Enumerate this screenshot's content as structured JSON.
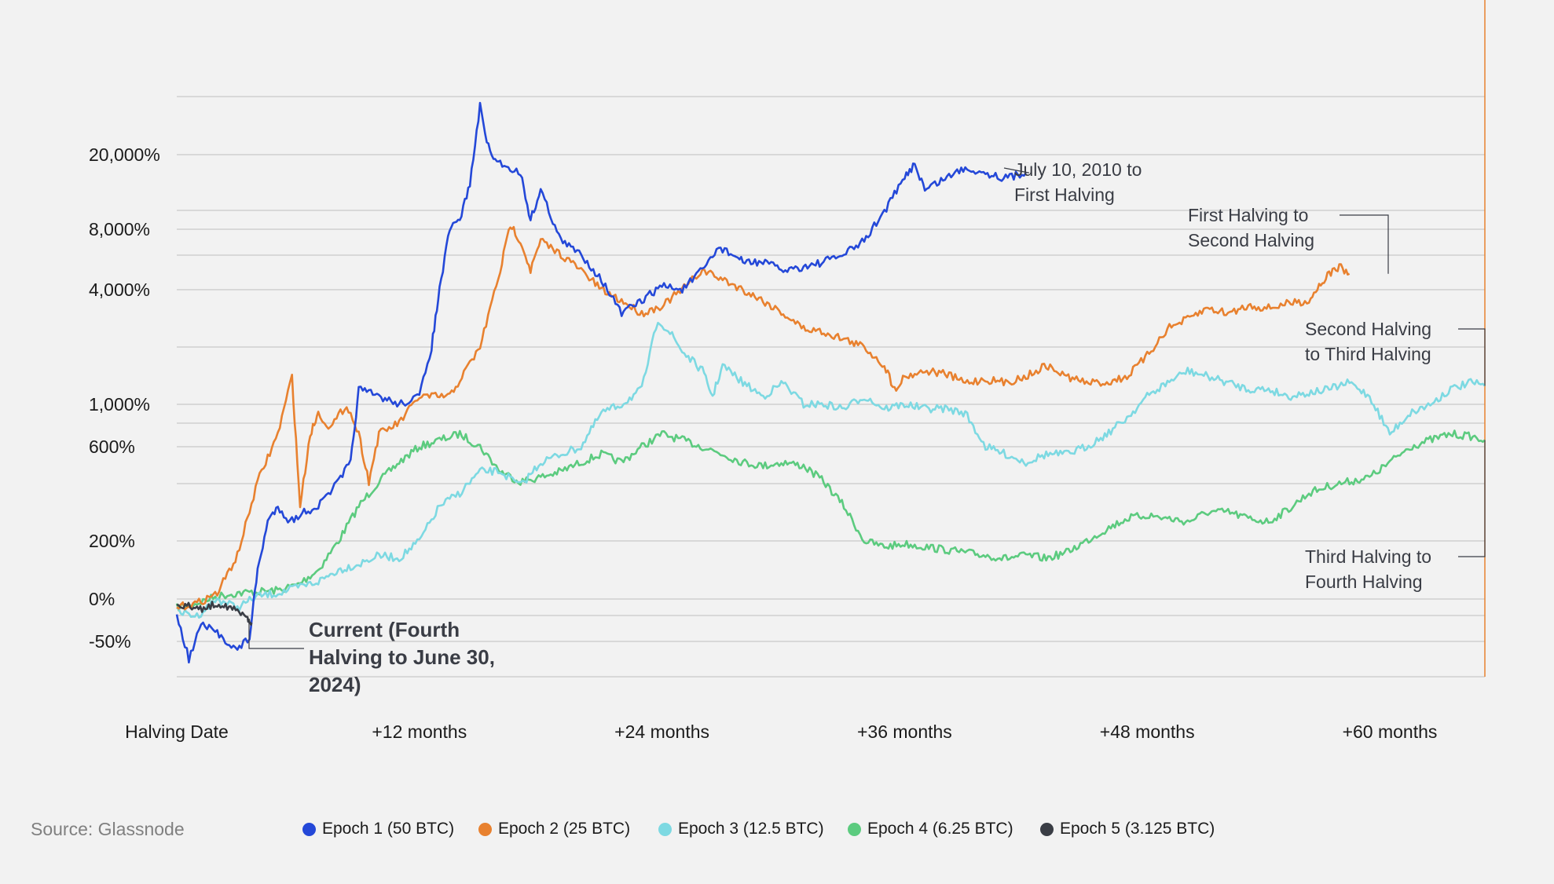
{
  "source": "Source: Glassnode",
  "chart_data": {
    "type": "line",
    "title": "",
    "xlabel": "",
    "ylabel": "",
    "y_scale": "log-like (return %)",
    "grid": "horizontal",
    "legend_position": "bottom",
    "x_ticks": [
      {
        "month": 0,
        "label": "Halving Date"
      },
      {
        "month": 12,
        "label": "+12 months"
      },
      {
        "month": 24,
        "label": "+24 months"
      },
      {
        "month": 36,
        "label": "+36 months"
      },
      {
        "month": 48,
        "label": "+48 months"
      },
      {
        "month": 60,
        "label": "+60 months"
      }
    ],
    "y_ticks": [
      {
        "value": 20000,
        "label": "20,000%"
      },
      {
        "value": 8000,
        "label": "8,000%"
      },
      {
        "value": 4000,
        "label": "4,000%"
      },
      {
        "value": 1000,
        "label": "1,000%"
      },
      {
        "value": 600,
        "label": "600%"
      },
      {
        "value": 200,
        "label": "200%"
      },
      {
        "value": 0,
        "label": "0%"
      },
      {
        "value": -50,
        "label": "-50%"
      }
    ],
    "y_range": [
      -90,
      60000
    ],
    "x_range_months": [
      0,
      64.7
    ],
    "series": [
      {
        "name": "Epoch 1 (50 BTC)",
        "color": "#2448d8",
        "points": [
          [
            0,
            -20
          ],
          [
            0.6,
            -70
          ],
          [
            1.2,
            -30
          ],
          [
            2,
            -40
          ],
          [
            3,
            -60
          ],
          [
            3.6,
            -45
          ],
          [
            4,
            100
          ],
          [
            4.5,
            250
          ],
          [
            5,
            300
          ],
          [
            5.6,
            250
          ],
          [
            6.3,
            280
          ],
          [
            7,
            300
          ],
          [
            8,
            400
          ],
          [
            8.6,
            500
          ],
          [
            9,
            1200
          ],
          [
            10,
            1100
          ],
          [
            11,
            1000
          ],
          [
            12,
            1100
          ],
          [
            12.6,
            2000
          ],
          [
            13,
            4000
          ],
          [
            13.5,
            8000
          ],
          [
            14,
            9000
          ],
          [
            14.5,
            14000
          ],
          [
            15,
            40000
          ],
          [
            15.5,
            20000
          ],
          [
            16,
            18000
          ],
          [
            17,
            16000
          ],
          [
            17.5,
            9000
          ],
          [
            18,
            13000
          ],
          [
            19,
            7000
          ],
          [
            20,
            6000
          ],
          [
            21,
            4500
          ],
          [
            22,
            3000
          ],
          [
            23,
            3500
          ],
          [
            24,
            4200
          ],
          [
            25,
            4000
          ],
          [
            26,
            5000
          ],
          [
            26.8,
            6500
          ],
          [
            27.5,
            6000
          ],
          [
            28,
            5500
          ],
          [
            29,
            5500
          ],
          [
            30,
            5000
          ],
          [
            31,
            5200
          ],
          [
            32,
            5500
          ],
          [
            33,
            6000
          ],
          [
            34,
            7000
          ],
          [
            35,
            10000
          ],
          [
            36,
            15000
          ],
          [
            36.5,
            18000
          ],
          [
            37,
            13000
          ],
          [
            38,
            15000
          ],
          [
            39,
            17000
          ],
          [
            40,
            16000
          ],
          [
            41,
            15000
          ],
          [
            42,
            16000
          ]
        ]
      },
      {
        "name": "Epoch 2 (25 BTC)",
        "color": "#e8812f",
        "points": [
          [
            0,
            -10
          ],
          [
            1,
            -5
          ],
          [
            2,
            20
          ],
          [
            3,
            150
          ],
          [
            4,
            400
          ],
          [
            5,
            700
          ],
          [
            5.7,
            1400
          ],
          [
            6.1,
            300
          ],
          [
            6.6,
            700
          ],
          [
            7,
            900
          ],
          [
            7.6,
            750
          ],
          [
            8.4,
            1000
          ],
          [
            9,
            700
          ],
          [
            9.5,
            400
          ],
          [
            10,
            700
          ],
          [
            11,
            800
          ],
          [
            12,
            1100
          ],
          [
            13.5,
            1100
          ],
          [
            15,
            2000
          ],
          [
            16,
            5000
          ],
          [
            16.5,
            8500
          ],
          [
            17,
            7000
          ],
          [
            17.5,
            5000
          ],
          [
            18,
            7000
          ],
          [
            19,
            6000
          ],
          [
            20,
            5000
          ],
          [
            21,
            4000
          ],
          [
            22,
            3500
          ],
          [
            23,
            3000
          ],
          [
            24,
            3300
          ],
          [
            25,
            4000
          ],
          [
            26,
            5000
          ],
          [
            27,
            4500
          ],
          [
            28,
            4000
          ],
          [
            29,
            3500
          ],
          [
            30,
            3000
          ],
          [
            31,
            2500
          ],
          [
            32,
            2400
          ],
          [
            33,
            2200
          ],
          [
            34,
            2000
          ],
          [
            35,
            1600
          ],
          [
            35.5,
            1200
          ],
          [
            36,
            1400
          ],
          [
            37,
            1500
          ],
          [
            38,
            1450
          ],
          [
            39,
            1300
          ],
          [
            40,
            1350
          ],
          [
            41,
            1300
          ],
          [
            42,
            1400
          ],
          [
            43,
            1600
          ],
          [
            44,
            1400
          ],
          [
            45,
            1300
          ],
          [
            46,
            1300
          ],
          [
            47,
            1400
          ],
          [
            48,
            1800
          ],
          [
            49,
            2500
          ],
          [
            50,
            2800
          ],
          [
            51,
            3200
          ],
          [
            52,
            3000
          ],
          [
            53,
            3300
          ],
          [
            54,
            3200
          ],
          [
            55,
            3400
          ],
          [
            56,
            3500
          ],
          [
            56.5,
            4200
          ],
          [
            57,
            4800
          ],
          [
            57.5,
            5200
          ],
          [
            58,
            4800
          ]
        ]
      },
      {
        "name": "Epoch 3 (12.5 BTC)",
        "color": "#7dd9e2",
        "points": [
          [
            0,
            -15
          ],
          [
            1,
            -20
          ],
          [
            2,
            0
          ],
          [
            3,
            -10
          ],
          [
            4,
            10
          ],
          [
            5,
            20
          ],
          [
            6,
            40
          ],
          [
            7,
            60
          ],
          [
            8,
            100
          ],
          [
            9,
            120
          ],
          [
            10,
            150
          ],
          [
            11,
            140
          ],
          [
            12,
            200
          ],
          [
            13,
            300
          ],
          [
            14,
            350
          ],
          [
            15,
            450
          ],
          [
            16,
            450
          ],
          [
            17,
            380
          ],
          [
            18,
            500
          ],
          [
            19,
            550
          ],
          [
            20,
            600
          ],
          [
            21,
            900
          ],
          [
            22,
            1000
          ],
          [
            23,
            1200
          ],
          [
            23.8,
            2800
          ],
          [
            24.5,
            2300
          ],
          [
            25,
            1900
          ],
          [
            26,
            1500
          ],
          [
            26.5,
            1100
          ],
          [
            27,
            1600
          ],
          [
            28,
            1300
          ],
          [
            29,
            1100
          ],
          [
            30,
            1300
          ],
          [
            31,
            1000
          ],
          [
            32,
            1000
          ],
          [
            33,
            950
          ],
          [
            34,
            1100
          ],
          [
            35,
            950
          ],
          [
            36,
            1000
          ],
          [
            37,
            950
          ],
          [
            38,
            950
          ],
          [
            39,
            900
          ],
          [
            40,
            600
          ],
          [
            41,
            550
          ],
          [
            42,
            500
          ],
          [
            43,
            550
          ],
          [
            44,
            550
          ],
          [
            45,
            600
          ],
          [
            46,
            700
          ],
          [
            47,
            850
          ],
          [
            48,
            1100
          ],
          [
            49,
            1300
          ],
          [
            50,
            1500
          ],
          [
            51,
            1400
          ],
          [
            52,
            1300
          ],
          [
            53,
            1200
          ],
          [
            54,
            1200
          ],
          [
            55,
            1100
          ],
          [
            56,
            1150
          ],
          [
            57,
            1200
          ],
          [
            58,
            1300
          ],
          [
            59,
            1100
          ],
          [
            60,
            700
          ],
          [
            61,
            900
          ],
          [
            62,
            1000
          ],
          [
            63,
            1200
          ],
          [
            64,
            1300
          ],
          [
            64.7,
            1250
          ]
        ]
      },
      {
        "name": "Epoch 4 (6.25 BTC)",
        "color": "#5ccb7f",
        "points": [
          [
            0,
            -10
          ],
          [
            1,
            -5
          ],
          [
            2,
            10
          ],
          [
            3,
            20
          ],
          [
            4,
            25
          ],
          [
            5,
            30
          ],
          [
            6,
            50
          ],
          [
            7,
            100
          ],
          [
            8,
            200
          ],
          [
            9,
            300
          ],
          [
            10,
            400
          ],
          [
            11,
            500
          ],
          [
            12,
            600
          ],
          [
            13,
            650
          ],
          [
            14,
            700
          ],
          [
            15,
            600
          ],
          [
            16,
            450
          ],
          [
            17,
            400
          ],
          [
            18,
            420
          ],
          [
            19,
            450
          ],
          [
            20,
            500
          ],
          [
            21,
            550
          ],
          [
            22,
            500
          ],
          [
            23,
            600
          ],
          [
            24,
            700
          ],
          [
            25,
            650
          ],
          [
            26,
            600
          ],
          [
            27,
            550
          ],
          [
            28,
            500
          ],
          [
            29,
            480
          ],
          [
            30,
            500
          ],
          [
            31,
            480
          ],
          [
            32,
            400
          ],
          [
            33,
            300
          ],
          [
            34,
            200
          ],
          [
            35,
            180
          ],
          [
            36,
            190
          ],
          [
            37,
            180
          ],
          [
            38,
            170
          ],
          [
            39,
            160
          ],
          [
            40,
            150
          ],
          [
            41,
            140
          ],
          [
            42,
            150
          ],
          [
            43,
            140
          ],
          [
            44,
            160
          ],
          [
            45,
            200
          ],
          [
            46,
            230
          ],
          [
            47,
            260
          ],
          [
            48,
            270
          ],
          [
            49,
            260
          ],
          [
            50,
            250
          ],
          [
            51,
            280
          ],
          [
            52,
            280
          ],
          [
            53,
            260
          ],
          [
            54,
            250
          ],
          [
            55,
            290
          ],
          [
            56,
            350
          ],
          [
            57,
            380
          ],
          [
            58,
            400
          ],
          [
            59,
            420
          ],
          [
            60,
            500
          ],
          [
            61,
            600
          ],
          [
            62,
            650
          ],
          [
            63,
            700
          ],
          [
            64,
            680
          ],
          [
            64.7,
            650
          ]
        ]
      },
      {
        "name": "Epoch 5 (3.125 BTC)",
        "color": "#3a3d45",
        "points": [
          [
            0,
            -5
          ],
          [
            0.5,
            -8
          ],
          [
            1,
            -12
          ],
          [
            1.5,
            -10
          ],
          [
            2,
            -5
          ],
          [
            2.5,
            -8
          ],
          [
            3,
            -15
          ],
          [
            3.5,
            -22
          ],
          [
            3.7,
            -28
          ]
        ]
      }
    ],
    "annotations": [
      {
        "lines": [
          "July 10, 2010 to",
          "First Halving"
        ],
        "series": "Epoch 1 (50 BTC)"
      },
      {
        "lines": [
          "First Halving to",
          "Second Halving"
        ],
        "series": "Epoch 2 (25 BTC)"
      },
      {
        "lines": [
          "Second Halving",
          "to Third Halving"
        ],
        "series": "Epoch 3 (12.5 BTC)"
      },
      {
        "lines": [
          "Third Halving to",
          "Fourth Halving"
        ],
        "series": "Epoch 4 (6.25 BTC)"
      },
      {
        "lines": [
          "Current (Fourth",
          "Halving to June 30,",
          "2024)"
        ],
        "series": "Epoch 5 (3.125 BTC)",
        "bold": true
      }
    ]
  },
  "colors": {
    "background": "#f2f2f2",
    "grid": "#c8c8c8",
    "right_border": "#e8812f"
  }
}
